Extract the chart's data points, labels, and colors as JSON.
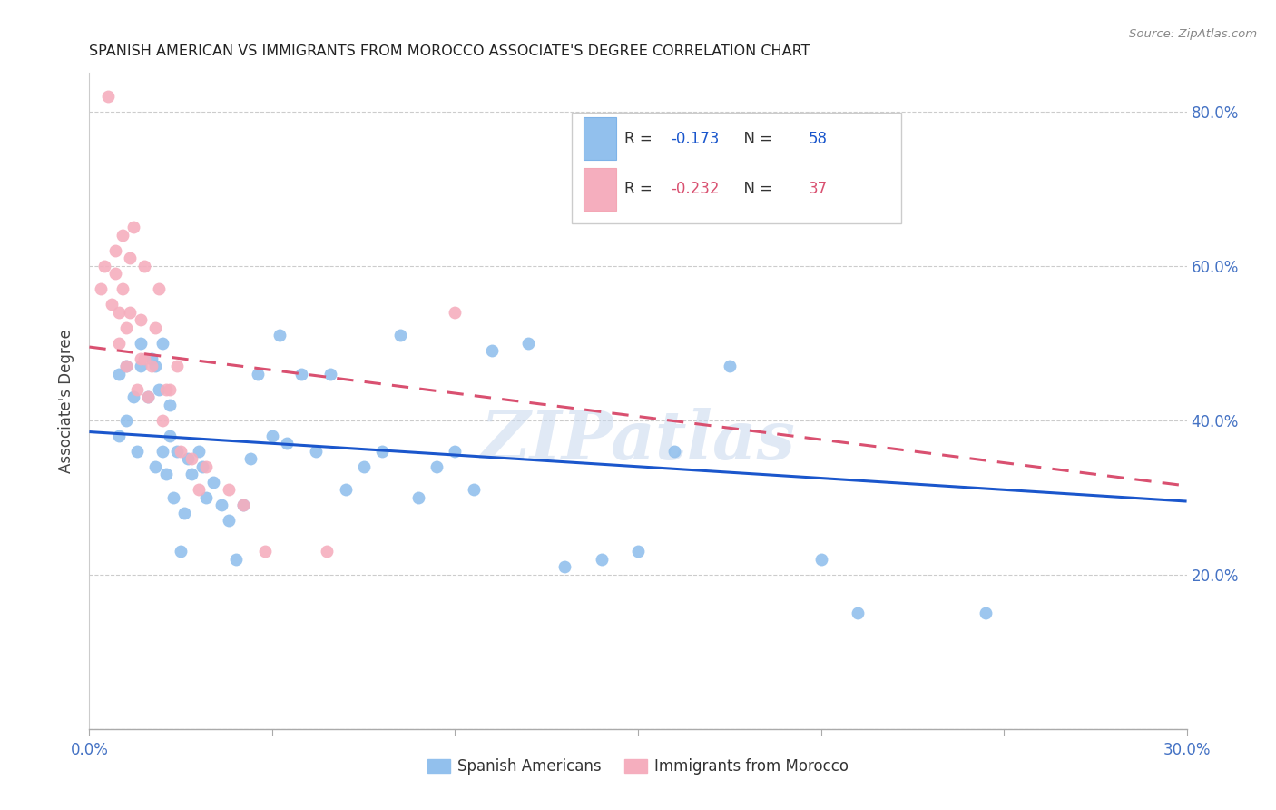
{
  "title": "SPANISH AMERICAN VS IMMIGRANTS FROM MOROCCO ASSOCIATE'S DEGREE CORRELATION CHART",
  "source": "Source: ZipAtlas.com",
  "ylabel": "Associate's Degree",
  "x_min": 0.0,
  "x_max": 0.3,
  "y_min": 0.0,
  "y_max": 0.85,
  "x_ticks": [
    0.0,
    0.05,
    0.1,
    0.15,
    0.2,
    0.25,
    0.3
  ],
  "x_tick_labels": [
    "0.0%",
    "",
    "",
    "",
    "",
    "",
    "30.0%"
  ],
  "y_ticks": [
    0.0,
    0.2,
    0.4,
    0.6,
    0.8
  ],
  "y_tick_labels": [
    "",
    "20.0%",
    "40.0%",
    "60.0%",
    "80.0%"
  ],
  "blue_color": "#92C0ED",
  "pink_color": "#F5AEBE",
  "trendline_blue": "#1A56CC",
  "trendline_pink": "#D95070",
  "legend_r_blue": "-0.173",
  "legend_n_blue": "58",
  "legend_r_pink": "-0.232",
  "legend_n_pink": "37",
  "watermark": "ZIPatlas",
  "blue_scatter_x": [
    0.008,
    0.008,
    0.01,
    0.01,
    0.012,
    0.013,
    0.014,
    0.014,
    0.016,
    0.017,
    0.018,
    0.018,
    0.019,
    0.02,
    0.02,
    0.021,
    0.022,
    0.022,
    0.023,
    0.024,
    0.025,
    0.026,
    0.027,
    0.028,
    0.03,
    0.031,
    0.032,
    0.034,
    0.036,
    0.038,
    0.04,
    0.042,
    0.044,
    0.046,
    0.05,
    0.052,
    0.054,
    0.058,
    0.062,
    0.066,
    0.07,
    0.075,
    0.08,
    0.085,
    0.09,
    0.095,
    0.1,
    0.105,
    0.11,
    0.12,
    0.13,
    0.14,
    0.15,
    0.16,
    0.175,
    0.2,
    0.21,
    0.245
  ],
  "blue_scatter_y": [
    0.38,
    0.46,
    0.4,
    0.47,
    0.43,
    0.36,
    0.47,
    0.5,
    0.43,
    0.48,
    0.34,
    0.47,
    0.44,
    0.36,
    0.5,
    0.33,
    0.38,
    0.42,
    0.3,
    0.36,
    0.23,
    0.28,
    0.35,
    0.33,
    0.36,
    0.34,
    0.3,
    0.32,
    0.29,
    0.27,
    0.22,
    0.29,
    0.35,
    0.46,
    0.38,
    0.51,
    0.37,
    0.46,
    0.36,
    0.46,
    0.31,
    0.34,
    0.36,
    0.51,
    0.3,
    0.34,
    0.36,
    0.31,
    0.49,
    0.5,
    0.21,
    0.22,
    0.23,
    0.36,
    0.47,
    0.22,
    0.15,
    0.15
  ],
  "pink_scatter_x": [
    0.003,
    0.004,
    0.005,
    0.006,
    0.007,
    0.007,
    0.008,
    0.008,
    0.009,
    0.009,
    0.01,
    0.01,
    0.011,
    0.011,
    0.012,
    0.013,
    0.014,
    0.014,
    0.015,
    0.015,
    0.016,
    0.017,
    0.018,
    0.019,
    0.02,
    0.021,
    0.022,
    0.024,
    0.025,
    0.028,
    0.03,
    0.032,
    0.038,
    0.042,
    0.048,
    0.065,
    0.1
  ],
  "pink_scatter_y": [
    0.57,
    0.6,
    0.82,
    0.55,
    0.59,
    0.62,
    0.5,
    0.54,
    0.57,
    0.64,
    0.47,
    0.52,
    0.54,
    0.61,
    0.65,
    0.44,
    0.48,
    0.53,
    0.48,
    0.6,
    0.43,
    0.47,
    0.52,
    0.57,
    0.4,
    0.44,
    0.44,
    0.47,
    0.36,
    0.35,
    0.31,
    0.34,
    0.31,
    0.29,
    0.23,
    0.23,
    0.54
  ],
  "blue_trend_x": [
    0.0,
    0.3
  ],
  "blue_trend_y": [
    0.385,
    0.295
  ],
  "pink_trend_x": [
    0.0,
    0.3
  ],
  "pink_trend_y": [
    0.495,
    0.315
  ]
}
